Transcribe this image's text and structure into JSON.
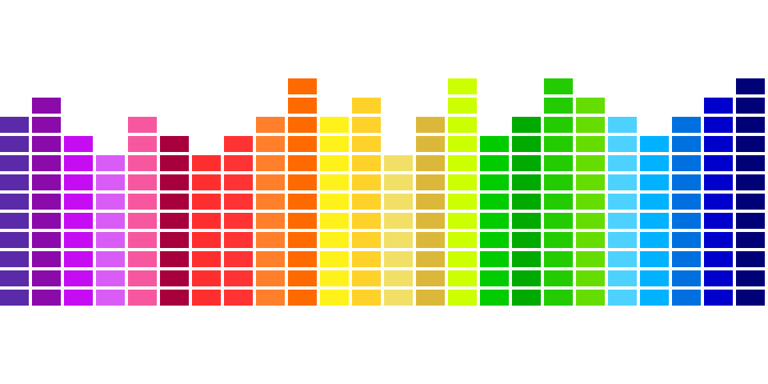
{
  "equalizer": {
    "max_level": 12,
    "columns": [
      {
        "level": 10,
        "color": "#5a2aa8"
      },
      {
        "level": 11,
        "color": "#8a0aaa"
      },
      {
        "level": 9,
        "color": "#c60cf2"
      },
      {
        "level": 8,
        "color": "#d95cf7"
      },
      {
        "level": 10,
        "color": "#f6579e"
      },
      {
        "level": 9,
        "color": "#a8003c"
      },
      {
        "level": 8,
        "color": "#ff2e2e"
      },
      {
        "level": 9,
        "color": "#ff3333"
      },
      {
        "level": 10,
        "color": "#ff7f2a"
      },
      {
        "level": 12,
        "color": "#ff6a00"
      },
      {
        "level": 10,
        "color": "#fff21a"
      },
      {
        "level": 11,
        "color": "#ffd22a"
      },
      {
        "level": 8,
        "color": "#f2e066"
      },
      {
        "level": 10,
        "color": "#dcb83a"
      },
      {
        "level": 12,
        "color": "#ccff00"
      },
      {
        "level": 9,
        "color": "#00cc00"
      },
      {
        "level": 10,
        "color": "#00aa00"
      },
      {
        "level": 12,
        "color": "#22cc00"
      },
      {
        "level": 11,
        "color": "#66dd00"
      },
      {
        "level": 10,
        "color": "#4dd2ff"
      },
      {
        "level": 9,
        "color": "#00b2ff"
      },
      {
        "level": 10,
        "color": "#0070e0"
      },
      {
        "level": 11,
        "color": "#0000cc"
      },
      {
        "level": 12,
        "color": "#000077"
      }
    ]
  }
}
